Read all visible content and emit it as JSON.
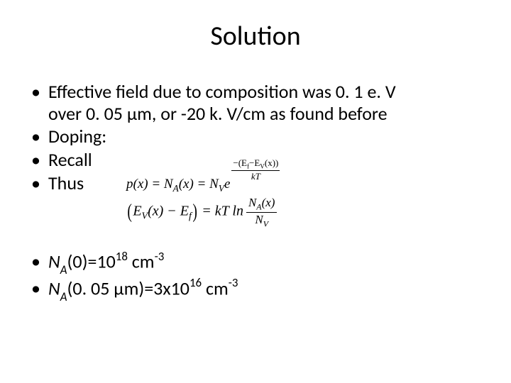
{
  "title": "Solution",
  "bullets": {
    "b1a": "Effective field due to composition was 0. 1 e. V",
    "b1b": "over 0. 05 μm, or -20 k. V/cm as found before",
    "b2": "Doping:",
    "b3": "Recall",
    "b4": "Thus",
    "b5_pre": "N",
    "b5_sub": "A",
    "b5_mid": "(0)=10",
    "b5_sup": "18",
    "b5_post": " cm",
    "b5_sup2": "-3",
    "b6_pre": "N",
    "b6_sub": "A",
    "b6_mid": "(0. 05 μm)=3x10",
    "b6_sup": "16",
    "b6_post": " cm",
    "b6_sup2": "-3"
  },
  "eq1": {
    "lhs": "p(x) = N",
    "lhs_sub": "A",
    "lhs2": "(x) = N",
    "lhs2_sub": "V",
    "e": "e",
    "exp_num_pre": "−(E",
    "exp_num_sub1": "f",
    "exp_num_mid": "−E",
    "exp_num_sub2": "V",
    "exp_num_post": "(x))",
    "exp_den": "kT"
  },
  "eq2": {
    "l_open": "(",
    "l_e": "E",
    "l_sub1": "V",
    "l_mid": "(x) − E",
    "l_sub2": "f",
    "l_close": ")",
    "eq": " = kT ln",
    "frac_num_pre": "N",
    "frac_num_sub": "A",
    "frac_num_post": "(x)",
    "frac_den_pre": "N",
    "frac_den_sub": "V"
  }
}
